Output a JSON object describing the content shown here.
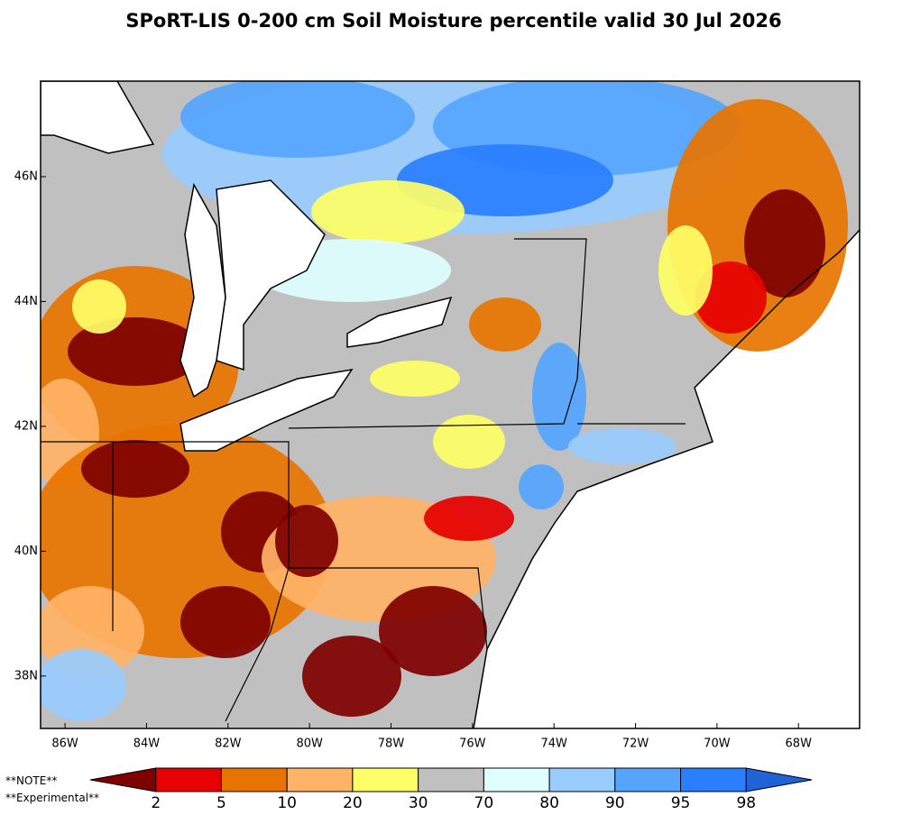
{
  "title": "SPoRT-LIS 0-200 cm Soil Moisture percentile valid 30 Jul 2026",
  "map": {
    "lonlim": [
      -86.6,
      -66.5
    ],
    "latlim": [
      37.16,
      47.53
    ],
    "lat_ticks": [
      {
        "value": 46,
        "label": "46N"
      },
      {
        "value": 44,
        "label": "44N"
      },
      {
        "value": 42,
        "label": "42N"
      },
      {
        "value": 40,
        "label": "40N"
      },
      {
        "value": 38,
        "label": "38N"
      }
    ],
    "lon_ticks": [
      {
        "value": -86,
        "label": "86W"
      },
      {
        "value": -84,
        "label": "84W"
      },
      {
        "value": -82,
        "label": "82W"
      },
      {
        "value": -80,
        "label": "80W"
      },
      {
        "value": -78,
        "label": "78W"
      },
      {
        "value": -76,
        "label": "76W"
      },
      {
        "value": -74,
        "label": "74W"
      },
      {
        "value": -72,
        "label": "72W"
      },
      {
        "value": -70,
        "label": "70W"
      },
      {
        "value": -68,
        "label": "68W"
      }
    ]
  },
  "colorbar": {
    "colors": [
      "#7f0000",
      "#e60000",
      "#e87400",
      "#ffb366",
      "#ffff66",
      "#c0c0c0",
      "#e0ffff",
      "#99ccff",
      "#55a5ff",
      "#2a7fff",
      "#1f63d6"
    ],
    "labels": [
      2,
      5,
      10,
      20,
      30,
      70,
      80,
      90,
      95,
      98
    ]
  },
  "notes": [
    "**NOTE**",
    "**Experimental**"
  ]
}
